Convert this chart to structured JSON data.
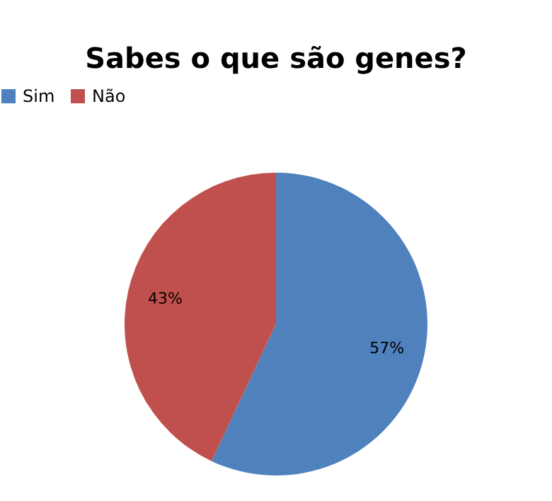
{
  "chart_data": {
    "type": "pie",
    "title": "Sabes o que são genes?",
    "categories": [
      "Sim",
      "Não"
    ],
    "values": [
      57,
      43
    ],
    "colors": [
      "#4f81bd",
      "#c0504d"
    ],
    "value_labels": [
      "57%",
      "43%"
    ],
    "legend": "top"
  }
}
